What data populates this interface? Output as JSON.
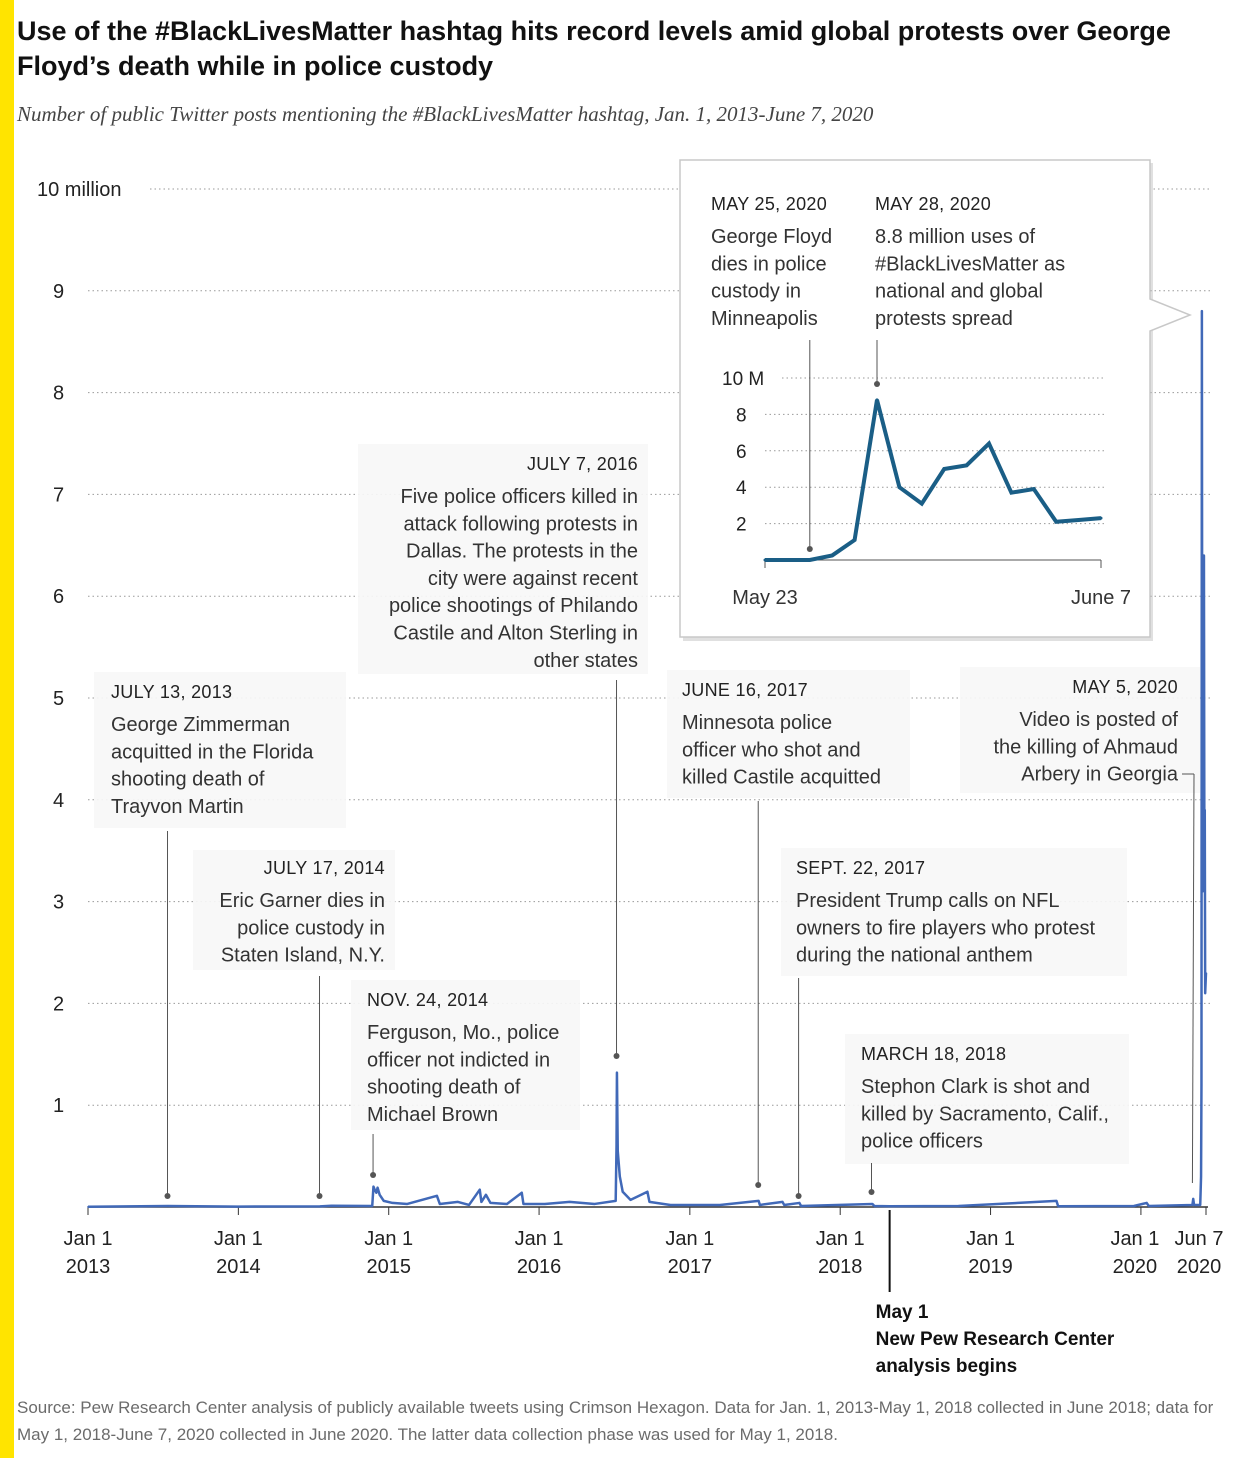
{
  "header": {
    "title": "Use of the #BlackLivesMatter hashtag hits record levels amid global protests over George Floyd’s death while in police custody",
    "subtitle": "Number of public Twitter posts mentioning the #BlackLivesMatter hashtag, Jan. 1, 2013-June 7, 2020"
  },
  "source": "Source: Pew Research Center analysis of publicly available tweets using Crimson Hexagon. Data for Jan. 1, 2013-May 1, 2018 collected in June 2018; data for May 1, 2018-June 7, 2020 collected in June 2020. The latter data collection phase was used for May 1, 2018.",
  "colors": {
    "accent": "#FFE400",
    "line": "#4169B8",
    "inset_line": "#1A5E86",
    "grid": "#9a9a9a"
  },
  "chart_data": [
    {
      "type": "line",
      "ylim": [
        0,
        10
      ],
      "y_ticks": [
        {
          "value": 10,
          "label": "10 million"
        },
        {
          "value": 9,
          "label": "9"
        },
        {
          "value": 8,
          "label": "8"
        },
        {
          "value": 7,
          "label": "7"
        },
        {
          "value": 6,
          "label": "6"
        },
        {
          "value": 5,
          "label": "5"
        },
        {
          "value": 4,
          "label": "4"
        },
        {
          "value": 3,
          "label": "3"
        },
        {
          "value": 2,
          "label": "2"
        },
        {
          "value": 1,
          "label": "1"
        }
      ],
      "x_range": [
        "2013-01-01",
        "2020-06-07"
      ],
      "x_ticks": [
        {
          "date": "2013-01-01",
          "line1": "Jan 1",
          "line2": "2013"
        },
        {
          "date": "2014-01-01",
          "line1": "Jan 1",
          "line2": "2014"
        },
        {
          "date": "2015-01-01",
          "line1": "Jan 1",
          "line2": "2015"
        },
        {
          "date": "2016-01-01",
          "line1": "Jan 1",
          "line2": "2016"
        },
        {
          "date": "2017-01-01",
          "line1": "Jan 1",
          "line2": "2017"
        },
        {
          "date": "2018-01-01",
          "line1": "Jan 1",
          "line2": "2018"
        },
        {
          "date": "2019-01-01",
          "line1": "Jan 1",
          "line2": "2019"
        },
        {
          "date": "2020-01-01",
          "line1": "Jan 1",
          "line2": "2020"
        },
        {
          "date": "2020-06-07",
          "line1": "Jun 7",
          "line2": "2020"
        }
      ],
      "series": [
        {
          "unit": "millions",
          "points": [
            [
              "2013-01-01",
              0.002
            ],
            [
              "2013-07-14",
              0.01
            ],
            [
              "2013-12-31",
              0.004
            ],
            [
              "2014-07-18",
              0.006
            ],
            [
              "2014-08-15",
              0.012
            ],
            [
              "2014-11-22",
              0.01
            ],
            [
              "2014-11-25",
              0.2
            ],
            [
              "2014-11-28",
              0.17
            ],
            [
              "2014-12-02",
              0.14
            ],
            [
              "2014-12-05",
              0.19
            ],
            [
              "2014-12-10",
              0.12
            ],
            [
              "2014-12-20",
              0.06
            ],
            [
              "2015-01-10",
              0.04
            ],
            [
              "2015-02-15",
              0.03
            ],
            [
              "2015-04-28",
              0.11
            ],
            [
              "2015-05-05",
              0.03
            ],
            [
              "2015-06-18",
              0.05
            ],
            [
              "2015-07-15",
              0.02
            ],
            [
              "2015-08-10",
              0.17
            ],
            [
              "2015-08-14",
              0.05
            ],
            [
              "2015-08-25",
              0.12
            ],
            [
              "2015-09-05",
              0.04
            ],
            [
              "2015-10-15",
              0.03
            ],
            [
              "2015-11-20",
              0.14
            ],
            [
              "2015-11-24",
              0.03
            ],
            [
              "2016-01-15",
              0.03
            ],
            [
              "2016-03-15",
              0.05
            ],
            [
              "2016-05-15",
              0.03
            ],
            [
              "2016-07-05",
              0.06
            ],
            [
              "2016-07-07",
              0.6
            ],
            [
              "2016-07-08",
              1.32
            ],
            [
              "2016-07-10",
              0.55
            ],
            [
              "2016-07-15",
              0.3
            ],
            [
              "2016-07-22",
              0.15
            ],
            [
              "2016-08-10",
              0.07
            ],
            [
              "2016-09-20",
              0.15
            ],
            [
              "2016-09-25",
              0.05
            ],
            [
              "2016-11-15",
              0.02
            ],
            [
              "2017-03-15",
              0.02
            ],
            [
              "2017-06-17",
              0.06
            ],
            [
              "2017-06-20",
              0.02
            ],
            [
              "2017-08-14",
              0.05
            ],
            [
              "2017-08-18",
              0.02
            ],
            [
              "2017-09-24",
              0.04
            ],
            [
              "2017-09-28",
              0.01
            ],
            [
              "2018-03-20",
              0.03
            ],
            [
              "2018-03-25",
              0.01
            ],
            [
              "2018-05-01",
              0.008
            ],
            [
              "2018-10-15",
              0.01
            ],
            [
              "2019-06-10",
              0.06
            ],
            [
              "2019-06-14",
              0.008
            ],
            [
              "2019-12-15",
              0.01
            ],
            [
              "2020-01-15",
              0.04
            ],
            [
              "2020-01-20",
              0.01
            ],
            [
              "2020-05-05",
              0.02
            ],
            [
              "2020-05-07",
              0.08
            ],
            [
              "2020-05-09",
              0.02
            ],
            [
              "2020-05-24",
              0.02
            ],
            [
              "2020-05-26",
              0.3
            ],
            [
              "2020-05-27",
              1.2
            ],
            [
              "2020-05-28",
              8.8
            ],
            [
              "2020-05-29",
              4.0
            ],
            [
              "2020-05-30",
              3.1
            ],
            [
              "2020-05-31",
              5.0
            ],
            [
              "2020-06-01",
              5.2
            ],
            [
              "2020-06-02",
              6.4
            ],
            [
              "2020-06-03",
              3.7
            ],
            [
              "2020-06-04",
              3.9
            ],
            [
              "2020-06-05",
              2.1
            ],
            [
              "2020-06-06",
              2.2
            ],
            [
              "2020-06-07",
              2.3
            ]
          ]
        }
      ],
      "annotations": [
        {
          "date": "2013-07-13",
          "heading": "JULY 13, 2013",
          "lines": [
            "George Zimmerman",
            "acquitted in the Florida",
            "shooting death of",
            "Trayvon Martin"
          ]
        },
        {
          "date": "2014-07-17",
          "heading": "JULY 17, 2014",
          "lines": [
            "Eric Garner dies in",
            "police custody in",
            "Staten Island, N.Y."
          ]
        },
        {
          "date": "2014-11-24",
          "heading": "NOV. 24, 2014",
          "lines": [
            "Ferguson, Mo., police",
            "officer not indicted in",
            "shooting death of",
            "Michael Brown"
          ]
        },
        {
          "date": "2016-07-07",
          "heading": "JULY 7, 2016",
          "lines": [
            "Five police officers killed in",
            "attack following protests in",
            "Dallas. The protests in the",
            "city were against recent",
            "police shootings of Philando",
            "Castile and Alton Sterling in",
            "other states"
          ]
        },
        {
          "date": "2017-06-16",
          "heading": "JUNE 16, 2017",
          "lines": [
            "Minnesota police",
            "officer who shot and",
            "killed Castile acquitted"
          ]
        },
        {
          "date": "2017-09-22",
          "heading": "SEPT. 22, 2017",
          "lines": [
            "President Trump calls on NFL",
            "owners to fire players who protest",
            "during the national anthem"
          ]
        },
        {
          "date": "2018-03-18",
          "heading": "MARCH 18, 2018",
          "lines": [
            "Stephon Clark is shot and",
            "killed by Sacramento, Calif.,",
            "police officers"
          ]
        },
        {
          "date": "2020-05-05",
          "heading": "MAY 5, 2020",
          "lines": [
            "Video is posted of",
            "the killing of Ahmaud",
            "Arbery in Georgia"
          ]
        }
      ],
      "method_marker": {
        "date": "2018-05-01",
        "lines": [
          "May 1",
          "New Pew Research Center",
          "analysis begins"
        ]
      }
    },
    {
      "type": "line",
      "ylim": [
        0,
        10
      ],
      "y_ticks": [
        {
          "value": 10,
          "label": "10 M"
        },
        {
          "value": 8,
          "label": "8"
        },
        {
          "value": 6,
          "label": "6"
        },
        {
          "value": 4,
          "label": "4"
        },
        {
          "value": 2,
          "label": "2"
        }
      ],
      "x_range": [
        "2020-05-23",
        "2020-06-07"
      ],
      "x_labels": [
        {
          "date": "2020-05-23",
          "label": "May 23"
        },
        {
          "date": "2020-06-07",
          "label": "June 7"
        }
      ],
      "series": [
        {
          "unit": "millions",
          "points": [
            [
              "2020-05-23",
              0.0
            ],
            [
              "2020-05-24",
              0.0
            ],
            [
              "2020-05-25",
              0.0
            ],
            [
              "2020-05-26",
              0.25
            ],
            [
              "2020-05-27",
              1.1
            ],
            [
              "2020-05-28",
              8.8
            ],
            [
              "2020-05-29",
              4.0
            ],
            [
              "2020-05-30",
              3.1
            ],
            [
              "2020-05-31",
              5.0
            ],
            [
              "2020-06-01",
              5.2
            ],
            [
              "2020-06-02",
              6.4
            ],
            [
              "2020-06-03",
              3.7
            ],
            [
              "2020-06-04",
              3.9
            ],
            [
              "2020-06-05",
              2.1
            ],
            [
              "2020-06-06",
              2.2
            ],
            [
              "2020-06-07",
              2.3
            ]
          ]
        }
      ],
      "annotations": [
        {
          "date": "2020-05-25",
          "heading": "MAY 25, 2020",
          "lines": [
            "George Floyd",
            "dies in police",
            "custody in",
            "Minneapolis"
          ]
        },
        {
          "date": "2020-05-28",
          "heading": "MAY 28, 2020",
          "lines": [
            "8.8 million uses of",
            "#BlackLivesMatter as",
            "national and global",
            "protests spread"
          ]
        }
      ]
    }
  ]
}
